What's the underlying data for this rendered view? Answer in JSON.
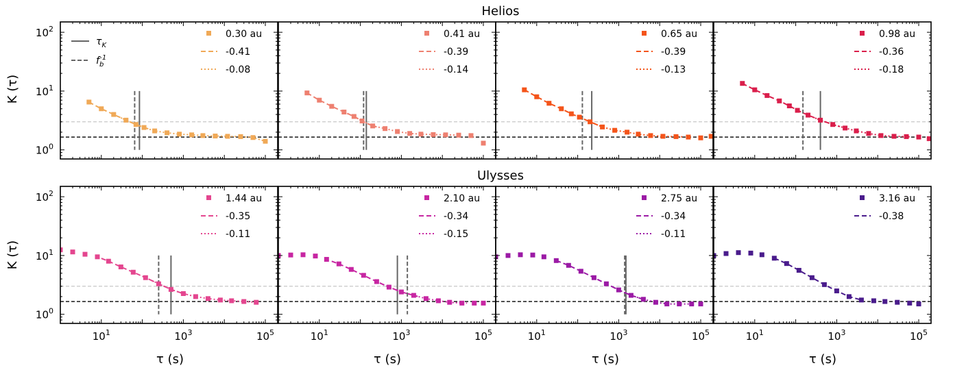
{
  "figure": {
    "row_titles": [
      "Helios",
      "Ulysses"
    ],
    "xlabel": "τ (s)",
    "ylabel": "K (τ)",
    "x_scale": "log",
    "y_scale": "log",
    "xlim": [
      1,
      200000
    ],
    "ylim": [
      0.7,
      150
    ],
    "x_ticks": [
      {
        "v": 10,
        "b": "10",
        "e": "1"
      },
      {
        "v": 1000,
        "b": "10",
        "e": "3"
      },
      {
        "v": 100000,
        "b": "10",
        "e": "5"
      }
    ],
    "y_ticks": [
      {
        "v": 1,
        "b": "10",
        "e": "0"
      },
      {
        "v": 10,
        "b": "10",
        "e": "1"
      },
      {
        "v": 100,
        "b": "10",
        "e": "2"
      }
    ],
    "reference_lines": {
      "black_dashed_y": 1.65,
      "gray_dashed_y": 3.0
    },
    "legend_lines": {
      "tau_k": "τ_K",
      "fb_inv": "f_b^-1"
    }
  },
  "chart_data": [
    {
      "type": "scatter",
      "row": 0,
      "col": 0,
      "distance": "0.30 au",
      "color": "#f0a957",
      "points": [
        [
          5,
          6.5
        ],
        [
          10,
          5
        ],
        [
          20,
          4
        ],
        [
          40,
          3.2
        ],
        [
          70,
          2.7
        ],
        [
          110,
          2.4
        ],
        [
          200,
          2.1
        ],
        [
          400,
          1.95
        ],
        [
          800,
          1.85
        ],
        [
          1600,
          1.8
        ],
        [
          3000,
          1.75
        ],
        [
          6000,
          1.72
        ],
        [
          12000,
          1.7
        ],
        [
          25000,
          1.68
        ],
        [
          50000,
          1.62
        ],
        [
          100000,
          1.4
        ]
      ],
      "fit_dashed": {
        "label": "-0.41",
        "x": [
          5,
          150
        ]
      },
      "fit_dotted": {
        "label": "-0.08",
        "x": [
          30,
          100000
        ]
      },
      "tau_k": 85,
      "fb_inv": 65
    },
    {
      "type": "scatter",
      "row": 0,
      "col": 1,
      "distance": "0.41 au",
      "color": "#ee8070",
      "points": [
        [
          5,
          9.3
        ],
        [
          10,
          7
        ],
        [
          20,
          5.5
        ],
        [
          40,
          4.4
        ],
        [
          70,
          3.7
        ],
        [
          110,
          3.1
        ],
        [
          200,
          2.55
        ],
        [
          400,
          2.3
        ],
        [
          800,
          2.05
        ],
        [
          1600,
          1.9
        ],
        [
          3000,
          1.85
        ],
        [
          6000,
          1.82
        ],
        [
          12000,
          1.8
        ],
        [
          25000,
          1.78
        ],
        [
          50000,
          1.75
        ],
        [
          100000,
          1.3
        ]
      ],
      "fit_dashed": {
        "label": "-0.39",
        "x": [
          5,
          250
        ]
      },
      "fit_dotted": {
        "label": "-0.14",
        "x": [
          40,
          20000
        ]
      },
      "tau_k": 140,
      "fb_inv": 120
    },
    {
      "type": "scatter",
      "row": 0,
      "col": 2,
      "distance": "0.65 au",
      "color": "#f4541a",
      "points": [
        [
          5,
          10.5
        ],
        [
          10,
          8
        ],
        [
          20,
          6.2
        ],
        [
          40,
          5
        ],
        [
          70,
          4.1
        ],
        [
          110,
          3.6
        ],
        [
          200,
          3.0
        ],
        [
          400,
          2.45
        ],
        [
          800,
          2.15
        ],
        [
          1600,
          2.0
        ],
        [
          3000,
          1.85
        ],
        [
          6000,
          1.75
        ],
        [
          12000,
          1.7
        ],
        [
          25000,
          1.68
        ],
        [
          50000,
          1.65
        ],
        [
          100000,
          1.6
        ],
        [
          180000,
          1.7
        ]
      ],
      "fit_dashed": {
        "label": "-0.39",
        "x": [
          5,
          500
        ]
      },
      "fit_dotted": {
        "label": "-0.13",
        "x": [
          100,
          40000
        ]
      },
      "tau_k": 220,
      "fb_inv": 130
    },
    {
      "type": "scatter",
      "row": 0,
      "col": 3,
      "distance": "0.98 au",
      "color": "#da1e4b",
      "points": [
        [
          5,
          13.5
        ],
        [
          10,
          10.5
        ],
        [
          20,
          8.4
        ],
        [
          40,
          6.8
        ],
        [
          70,
          5.6
        ],
        [
          110,
          4.7
        ],
        [
          200,
          3.9
        ],
        [
          400,
          3.2
        ],
        [
          800,
          2.7
        ],
        [
          1600,
          2.35
        ],
        [
          3000,
          2.1
        ],
        [
          6000,
          1.9
        ],
        [
          12000,
          1.75
        ],
        [
          25000,
          1.7
        ],
        [
          50000,
          1.68
        ],
        [
          100000,
          1.65
        ],
        [
          180000,
          1.55
        ]
      ],
      "fit_dashed": {
        "label": "-0.36",
        "x": [
          5,
          1200
        ]
      },
      "fit_dotted": {
        "label": "-0.18",
        "x": [
          300,
          60000
        ]
      },
      "tau_k": 400,
      "fb_inv": 150
    },
    {
      "type": "scatter",
      "row": 1,
      "col": 0,
      "distance": "1.44 au",
      "color": "#e4468f",
      "points": [
        [
          1,
          12.5
        ],
        [
          2,
          11.5
        ],
        [
          4,
          10.5
        ],
        [
          8,
          9.5
        ],
        [
          15,
          8
        ],
        [
          30,
          6.4
        ],
        [
          60,
          5.2
        ],
        [
          120,
          4.2
        ],
        [
          250,
          3.3
        ],
        [
          500,
          2.65
        ],
        [
          1000,
          2.25
        ],
        [
          2000,
          2.0
        ],
        [
          4000,
          1.85
        ],
        [
          8000,
          1.75
        ],
        [
          15000,
          1.7
        ],
        [
          30000,
          1.65
        ],
        [
          60000,
          1.6
        ]
      ],
      "fit_dashed": {
        "label": "-0.35",
        "x": [
          10,
          1200
        ]
      },
      "fit_dotted": {
        "label": "-0.11",
        "x": [
          100,
          60000
        ]
      },
      "tau_k": 500,
      "fb_inv": 250
    },
    {
      "type": "scatter",
      "row": 1,
      "col": 1,
      "distance": "2.10 au",
      "color": "#c726a2",
      "points": [
        [
          1,
          10
        ],
        [
          2,
          10.2
        ],
        [
          4,
          10.3
        ],
        [
          8,
          9.8
        ],
        [
          15,
          8.6
        ],
        [
          30,
          7.2
        ],
        [
          60,
          5.8
        ],
        [
          120,
          4.6
        ],
        [
          250,
          3.6
        ],
        [
          500,
          2.9
        ],
        [
          1000,
          2.4
        ],
        [
          2000,
          2.1
        ],
        [
          4000,
          1.85
        ],
        [
          8000,
          1.7
        ],
        [
          15000,
          1.6
        ],
        [
          30000,
          1.55
        ],
        [
          60000,
          1.55
        ],
        [
          100000,
          1.55
        ]
      ],
      "fit_dashed": {
        "label": "-0.34",
        "x": [
          20,
          2500
        ]
      },
      "fit_dotted": {
        "label": "-0.15",
        "x": [
          300,
          40000
        ]
      },
      "tau_k": 800,
      "fb_inv": 1400
    },
    {
      "type": "scatter",
      "row": 1,
      "col": 2,
      "distance": "2.75 au",
      "color": "#9b1aa5",
      "points": [
        [
          1,
          9.5
        ],
        [
          2,
          10
        ],
        [
          4,
          10.3
        ],
        [
          8,
          10.2
        ],
        [
          15,
          9.5
        ],
        [
          30,
          8.2
        ],
        [
          60,
          6.8
        ],
        [
          120,
          5.4
        ],
        [
          250,
          4.2
        ],
        [
          500,
          3.3
        ],
        [
          1000,
          2.6
        ],
        [
          2000,
          2.1
        ],
        [
          4000,
          1.8
        ],
        [
          8000,
          1.6
        ],
        [
          15000,
          1.5
        ],
        [
          30000,
          1.5
        ],
        [
          60000,
          1.5
        ],
        [
          100000,
          1.5
        ]
      ],
      "fit_dashed": {
        "label": "-0.34",
        "x": [
          30,
          3500
        ]
      },
      "fit_dotted": {
        "label": "-0.11",
        "x": [
          800,
          70000
        ]
      },
      "tau_k": 1500,
      "fb_inv": 1400
    },
    {
      "type": "scatter",
      "row": 1,
      "col": 3,
      "distance": "3.16 au",
      "color": "#4a1c8c",
      "points": [
        [
          1,
          10
        ],
        [
          2,
          10.8
        ],
        [
          4,
          11.2
        ],
        [
          8,
          11
        ],
        [
          15,
          10.3
        ],
        [
          30,
          9
        ],
        [
          60,
          7.3
        ],
        [
          120,
          5.6
        ],
        [
          250,
          4.2
        ],
        [
          500,
          3.2
        ],
        [
          1000,
          2.5
        ],
        [
          2000,
          2.0
        ],
        [
          4000,
          1.75
        ],
        [
          8000,
          1.7
        ],
        [
          15000,
          1.65
        ],
        [
          30000,
          1.6
        ],
        [
          60000,
          1.55
        ],
        [
          100000,
          1.5
        ]
      ],
      "fit_dashed": {
        "label": "-0.38",
        "x": [
          30,
          4000
        ]
      }
    }
  ]
}
